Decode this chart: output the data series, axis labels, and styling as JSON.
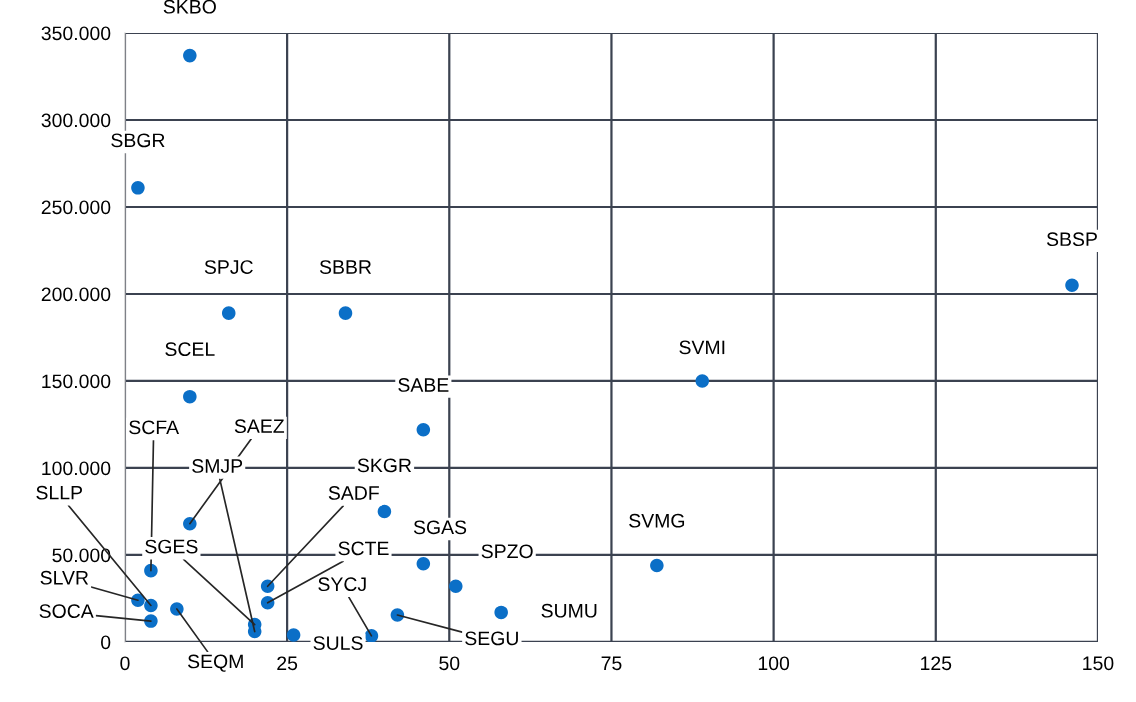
{
  "chart_data": {
    "type": "scatter",
    "marker": "circle",
    "grid": true,
    "x": [
      10,
      2,
      16,
      34,
      10,
      46,
      146,
      89,
      40,
      46,
      51,
      82,
      58,
      42,
      38,
      26,
      10,
      4,
      4,
      2,
      4,
      8,
      20,
      20,
      22,
      22
    ],
    "series": [
      {
        "color": "#0b6fc7",
        "values": [
          337000,
          261000,
          189000,
          189000,
          141000,
          122000,
          205000,
          150000,
          75000,
          45000,
          32000,
          44000,
          17000,
          15500,
          3500,
          4000,
          68000,
          41000,
          21000,
          24000,
          12000,
          19000,
          10000,
          6000,
          32000,
          22500
        ]
      }
    ],
    "xlim": [
      0,
      150
    ],
    "xticks": [
      0,
      25,
      50,
      75,
      100,
      125,
      150
    ],
    "ylim": [
      0,
      350000
    ],
    "yticks": [
      0,
      {
        "value": 50000,
        "label": "50.000"
      },
      {
        "value": 100000,
        "label": "100.000"
      },
      {
        "value": 150000,
        "label": "150.000"
      },
      {
        "value": 200000,
        "label": "200.000"
      },
      {
        "value": 250000,
        "label": "250.000"
      },
      {
        "value": 300000,
        "label": "300.000"
      },
      {
        "value": 350000,
        "label": "350.000"
      }
    ],
    "annotations": [
      {
        "text": "SKBO",
        "x": 10,
        "y": 337000
      },
      {
        "text": "SBGR",
        "x": 2,
        "y": 261000
      },
      {
        "text": "SPJC",
        "x": 16,
        "y": 189000
      },
      {
        "text": "SBBR",
        "x": 34,
        "y": 189000
      },
      {
        "text": "SCEL",
        "x": 10,
        "y": 141000
      },
      {
        "text": "SABE",
        "x": 46,
        "y": 122000
      },
      {
        "text": "SBSP",
        "x": 146,
        "y": 205000
      },
      {
        "text": "SVMI",
        "x": 89,
        "y": 150000
      },
      {
        "text": "SKGR",
        "x": 40,
        "y": 75000
      },
      {
        "text": "SGAS",
        "x": 46,
        "y": 45000
      },
      {
        "text": "SPZO",
        "x": 51,
        "y": 32000
      },
      {
        "text": "SVMG",
        "x": 82,
        "y": 44000
      },
      {
        "text": "SUMU",
        "x": 58,
        "y": 17000
      },
      {
        "text": "SEGU",
        "x": 42,
        "y": 15500
      },
      {
        "text": "SYCJ",
        "x": 38,
        "y": 3500
      },
      {
        "text": "SULS",
        "x": 26,
        "y": 4000
      },
      {
        "text": "SAEZ",
        "x": 10,
        "y": 68000
      },
      {
        "text": "SCFA",
        "x": 4,
        "y": 41000
      },
      {
        "text": "SLLP",
        "x": 4,
        "y": 21000
      },
      {
        "text": "SLVR",
        "x": 2,
        "y": 24000
      },
      {
        "text": "SOCA",
        "x": 4,
        "y": 12000
      },
      {
        "text": "SEQM",
        "x": 8,
        "y": 19000
      },
      {
        "text": "SGES",
        "x": 20,
        "y": 10000
      },
      {
        "text": "SMJP",
        "x": 20,
        "y": 6000
      },
      {
        "text": "SADF",
        "x": 22,
        "y": 32000
      },
      {
        "text": "SCTE",
        "x": 22,
        "y": 22500
      }
    ]
  }
}
